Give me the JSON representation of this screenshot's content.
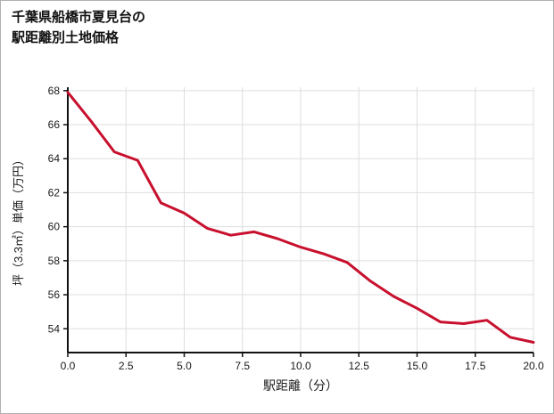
{
  "chart_data": {
    "type": "line",
    "title": "千葉県船橋市夏見台の駅距離別土地価格",
    "title_lines": [
      "千葉県船橋市夏見台の",
      "駅距離別土地価格"
    ],
    "xlabel": "駅距離（分）",
    "ylabel": "坪（3.3㎡）単価（万円）",
    "x": [
      0,
      1,
      2,
      3,
      4,
      5,
      6,
      7,
      8,
      9,
      10,
      11,
      12,
      13,
      14,
      15,
      16,
      17,
      18,
      19,
      20
    ],
    "y": [
      67.9,
      66.2,
      64.4,
      63.9,
      61.4,
      60.8,
      59.9,
      59.5,
      59.7,
      59.3,
      58.8,
      58.4,
      57.9,
      56.8,
      55.9,
      55.2,
      54.4,
      54.3,
      54.5,
      53.5,
      53.2
    ],
    "xlim": [
      0,
      20
    ],
    "ylim": [
      52.6,
      68.2
    ],
    "xtick_values": [
      0,
      2.5,
      5,
      7.5,
      10,
      12.5,
      15,
      17.5,
      20
    ],
    "xtick_labels": [
      "0.0",
      "2.5",
      "5.0",
      "7.5",
      "10.0",
      "12.5",
      "15.0",
      "17.5",
      "20.0"
    ],
    "ytick_values": [
      54,
      56,
      58,
      60,
      62,
      64,
      66,
      68
    ],
    "ytick_labels": [
      "54",
      "56",
      "58",
      "60",
      "62",
      "64",
      "66",
      "68"
    ],
    "grid": true,
    "legend": false,
    "line_color": "#c8102e",
    "grid_color": "#dedede",
    "axis_color": "#111111",
    "text_color": "#1a1a1a"
  }
}
